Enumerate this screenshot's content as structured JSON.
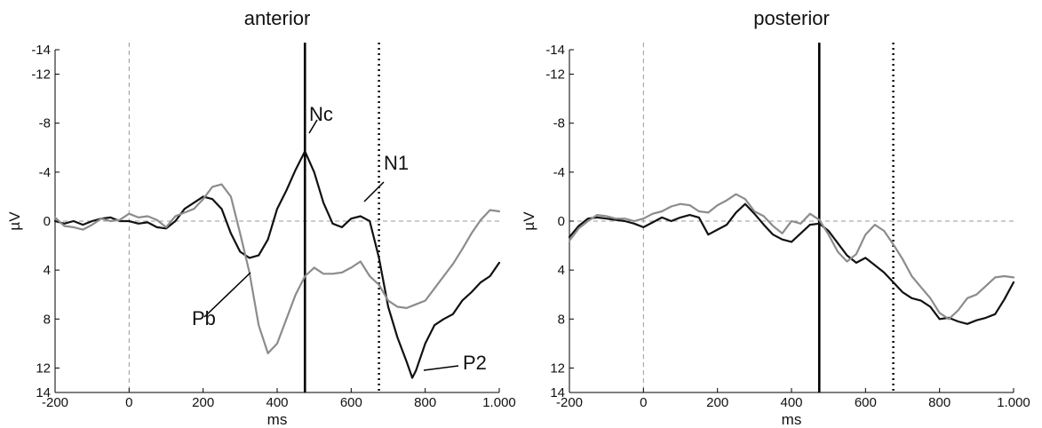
{
  "chart_data": [
    {
      "type": "line",
      "title": "anterior",
      "xlabel": "ms",
      "ylabel": "µV",
      "xlim": [
        -200,
        1000
      ],
      "ylim": [
        -14,
        14
      ],
      "y_inverted": true,
      "xticks": [
        -200,
        0,
        200,
        400,
        600,
        800,
        1000
      ],
      "xtick_labels": [
        "-200",
        "0",
        "200",
        "400",
        "600",
        "800",
        "1.000"
      ],
      "yticks": [
        -14,
        -12,
        -8,
        -4,
        0,
        4,
        8,
        12,
        14
      ],
      "ytick_labels": [
        "-14",
        "-12",
        "-8",
        "-4",
        "0",
        "4",
        "8",
        "12",
        "14"
      ],
      "grid": false,
      "reference_lines": [
        {
          "orientation": "horizontal",
          "value": 0,
          "style": "dashed",
          "color": "#999999"
        },
        {
          "orientation": "vertical",
          "value": 0,
          "style": "dashed",
          "color": "#999999"
        },
        {
          "orientation": "vertical",
          "value": 475,
          "style": "solid",
          "color": "#000000"
        },
        {
          "orientation": "vertical",
          "value": 675,
          "style": "dotted",
          "color": "#000000"
        }
      ],
      "series": [
        {
          "color": "#111111",
          "x": [
            -200,
            -175,
            -150,
            -125,
            -100,
            -75,
            -50,
            -25,
            0,
            25,
            50,
            75,
            100,
            125,
            150,
            175,
            200,
            225,
            250,
            275,
            300,
            325,
            350,
            375,
            400,
            425,
            450,
            475,
            500,
            525,
            550,
            575,
            600,
            625,
            650,
            675,
            700,
            725,
            750,
            765,
            775,
            800,
            825,
            850,
            875,
            900,
            925,
            950,
            975,
            1000
          ],
          "y": [
            0,
            0.2,
            0,
            0.3,
            0,
            -0.2,
            -0.3,
            0,
            0,
            0.2,
            0.1,
            0.5,
            0.6,
            0,
            -1,
            -1.5,
            -2,
            -1.8,
            -1,
            1,
            2.5,
            3,
            2.8,
            1.5,
            -1,
            -2.5,
            -4.2,
            -5.7,
            -4,
            -1.5,
            0.2,
            0.5,
            -0.2,
            -0.4,
            0,
            3,
            7,
            9.5,
            11.5,
            12.8,
            12.2,
            10,
            8.5,
            8,
            7.6,
            6.5,
            5.8,
            5,
            4.5,
            3.4
          ]
        },
        {
          "color": "#8c8c8c",
          "x": [
            -200,
            -175,
            -150,
            -125,
            -100,
            -75,
            -50,
            -25,
            0,
            25,
            50,
            75,
            100,
            125,
            150,
            175,
            200,
            225,
            250,
            275,
            300,
            325,
            350,
            375,
            400,
            425,
            450,
            475,
            500,
            525,
            550,
            575,
            600,
            625,
            650,
            675,
            700,
            725,
            750,
            775,
            800,
            825,
            850,
            875,
            900,
            925,
            950,
            975,
            1000
          ],
          "y": [
            -0.3,
            0.4,
            0.5,
            0.7,
            0.3,
            -0.2,
            0,
            -0.1,
            -0.6,
            -0.3,
            -0.4,
            -0.1,
            0.5,
            -0.4,
            -0.7,
            -1,
            -1.8,
            -2.8,
            -3,
            -2,
            1,
            4.2,
            8.5,
            10.8,
            10,
            8,
            6,
            4.5,
            3.8,
            4.3,
            4.3,
            4.2,
            3.8,
            3.3,
            4.5,
            5.2,
            6.5,
            7,
            7.1,
            6.8,
            6.5,
            5.5,
            4.5,
            3.5,
            2.3,
            1,
            -0.1,
            -0.9,
            -0.8
          ]
        }
      ],
      "annotations": [
        {
          "text": "Nc"
        },
        {
          "text": "N1"
        },
        {
          "text": "Pb"
        },
        {
          "text": "P2"
        }
      ]
    },
    {
      "type": "line",
      "title": "posterior",
      "xlabel": "ms",
      "ylabel": "µV",
      "xlim": [
        -200,
        1000
      ],
      "ylim": [
        -14,
        14
      ],
      "y_inverted": true,
      "xticks": [
        -200,
        0,
        200,
        400,
        600,
        800,
        1000
      ],
      "xtick_labels": [
        "-200",
        "0",
        "200",
        "400",
        "600",
        "800",
        "1.000"
      ],
      "yticks": [
        -14,
        -12,
        -8,
        -4,
        0,
        4,
        8,
        12,
        14
      ],
      "ytick_labels": [
        "-14",
        "-12",
        "-8",
        "-4",
        "0",
        "4",
        "8",
        "12",
        "14"
      ],
      "grid": false,
      "reference_lines": [
        {
          "orientation": "horizontal",
          "value": 0,
          "style": "dashed",
          "color": "#999999"
        },
        {
          "orientation": "vertical",
          "value": 0,
          "style": "dashed",
          "color": "#999999"
        },
        {
          "orientation": "vertical",
          "value": 475,
          "style": "solid",
          "color": "#000000"
        },
        {
          "orientation": "vertical",
          "value": 675,
          "style": "dotted",
          "color": "#000000"
        }
      ],
      "series": [
        {
          "color": "#111111",
          "x": [
            -200,
            -175,
            -150,
            -125,
            -100,
            -75,
            -50,
            -25,
            0,
            25,
            50,
            75,
            100,
            125,
            150,
            175,
            200,
            225,
            250,
            275,
            300,
            325,
            350,
            375,
            400,
            425,
            450,
            475,
            500,
            525,
            550,
            575,
            600,
            625,
            650,
            675,
            700,
            725,
            750,
            775,
            800,
            825,
            850,
            875,
            900,
            925,
            950,
            975,
            1000
          ],
          "y": [
            1.3,
            0.4,
            -0.2,
            -0.3,
            -0.2,
            -0.1,
            0,
            0.2,
            0.5,
            0.1,
            -0.3,
            0,
            -0.3,
            -0.5,
            -0.3,
            1.1,
            0.7,
            0.3,
            -0.7,
            -1.4,
            -0.6,
            0.3,
            1.1,
            1.5,
            1.7,
            1.0,
            0.3,
            0.2,
            0.8,
            1.8,
            2.8,
            3.4,
            3.0,
            3.6,
            4.2,
            5.0,
            5.8,
            6.3,
            6.5,
            7.0,
            8.0,
            7.9,
            8.2,
            8.4,
            8.1,
            7.9,
            7.6,
            6.4,
            5.0
          ]
        },
        {
          "color": "#8c8c8c",
          "x": [
            -200,
            -175,
            -150,
            -125,
            -100,
            -75,
            -50,
            -25,
            0,
            25,
            50,
            75,
            100,
            125,
            150,
            175,
            200,
            225,
            250,
            275,
            300,
            325,
            350,
            375,
            400,
            425,
            450,
            475,
            500,
            525,
            550,
            575,
            600,
            625,
            650,
            675,
            700,
            725,
            750,
            775,
            800,
            825,
            850,
            875,
            900,
            925,
            950,
            975,
            1000
          ],
          "y": [
            1.6,
            0.6,
            0,
            -0.5,
            -0.4,
            -0.2,
            -0.2,
            0,
            -0.2,
            -0.6,
            -0.8,
            -1.2,
            -1.4,
            -1.3,
            -0.8,
            -0.7,
            -1.3,
            -1.7,
            -2.2,
            -1.8,
            -0.8,
            -0.4,
            0.4,
            1.0,
            0.0,
            0.2,
            -0.6,
            -0.1,
            1.1,
            2.5,
            3.3,
            2.7,
            1.1,
            0.3,
            0.8,
            1.9,
            3.1,
            4.5,
            5.4,
            6.3,
            7.5,
            8.0,
            7.3,
            6.3,
            6.0,
            5.3,
            4.6,
            4.5,
            4.6
          ]
        }
      ],
      "annotations": []
    }
  ]
}
